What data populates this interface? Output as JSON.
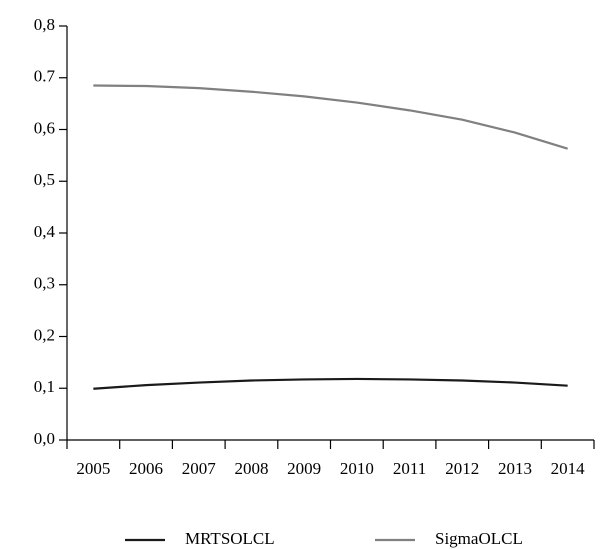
{
  "chart_data": {
    "type": "line",
    "categories": [
      "2005",
      "2006",
      "2007",
      "2008",
      "2009",
      "2010",
      "2011",
      "2012",
      "2013",
      "2014"
    ],
    "series": [
      {
        "name": "MRTSOLCL",
        "color": "#1a1a1a",
        "values": [
          0.099,
          0.106,
          0.111,
          0.115,
          0.117,
          0.118,
          0.117,
          0.115,
          0.111,
          0.105
        ]
      },
      {
        "name": "SigmaOLCL",
        "color": "#808080",
        "values": [
          0.685,
          0.684,
          0.68,
          0.673,
          0.664,
          0.652,
          0.637,
          0.619,
          0.594,
          0.563
        ]
      }
    ],
    "ylim": [
      0,
      0.8
    ],
    "yticks": [
      {
        "value": 0,
        "label": "0,0"
      },
      {
        "value": 0.1,
        "label": "0,1"
      },
      {
        "value": 0.2,
        "label": "0,2"
      },
      {
        "value": 0.3,
        "label": "0,3"
      },
      {
        "value": 0.4,
        "label": "0,4"
      },
      {
        "value": 0.5,
        "label": "0,5"
      },
      {
        "value": 0.6,
        "label": "0,6"
      },
      0.7,
      {
        "value": 0.8,
        "label": "0,8"
      }
    ],
    "grid": false,
    "legend": "bottom"
  }
}
